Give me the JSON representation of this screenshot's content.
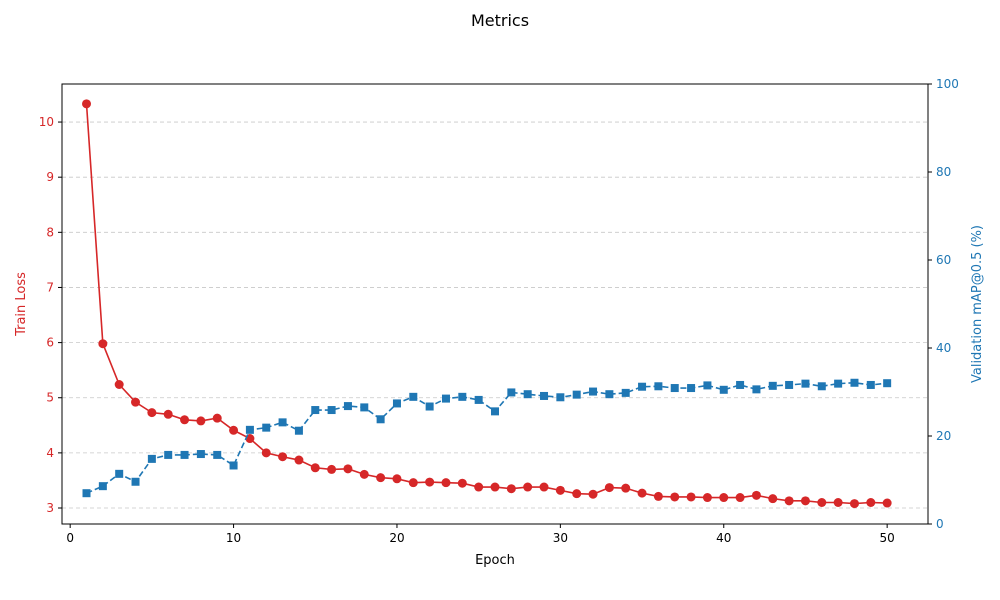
{
  "chart_data": {
    "type": "line",
    "title": "Metrics",
    "xlabel": "Epoch",
    "ylabel_left": "Train Loss",
    "ylabel_right": "Validation mAP@0.5 (%)",
    "xlim": [
      -0.5,
      52.5
    ],
    "ylim_left": [
      2.71,
      10.69
    ],
    "ylim_right": [
      0,
      100
    ],
    "xticks": [
      0,
      10,
      20,
      30,
      40,
      50
    ],
    "yticks_left": [
      3,
      4,
      5,
      6,
      7,
      8,
      9,
      10
    ],
    "yticks_right": [
      0,
      20,
      40,
      60,
      80,
      100
    ],
    "grid": "horizontal dashed",
    "x": [
      1,
      2,
      3,
      4,
      5,
      6,
      7,
      8,
      9,
      10,
      11,
      12,
      13,
      14,
      15,
      16,
      17,
      18,
      19,
      20,
      21,
      22,
      23,
      24,
      25,
      26,
      27,
      28,
      29,
      30,
      31,
      32,
      33,
      34,
      35,
      36,
      37,
      38,
      39,
      40,
      41,
      42,
      43,
      44,
      45,
      46,
      47,
      48,
      49,
      50
    ],
    "series": [
      {
        "axis": "left",
        "color": "#d62728",
        "marker": "circle",
        "linestyle": "solid",
        "values": [
          10.33,
          5.98,
          5.24,
          4.92,
          4.73,
          4.7,
          4.6,
          4.58,
          4.63,
          4.41,
          4.26,
          4.0,
          3.93,
          3.87,
          3.73,
          3.7,
          3.71,
          3.61,
          3.55,
          3.53,
          3.46,
          3.47,
          3.46,
          3.45,
          3.38,
          3.38,
          3.35,
          3.38,
          3.38,
          3.32,
          3.26,
          3.25,
          3.37,
          3.36,
          3.27,
          3.21,
          3.2,
          3.2,
          3.19,
          3.19,
          3.19,
          3.23,
          3.17,
          3.13,
          3.13,
          3.1,
          3.1,
          3.08,
          3.1,
          3.09
        ]
      },
      {
        "axis": "right",
        "color": "#1f77b4",
        "marker": "square",
        "linestyle": "dashed",
        "values": [
          7.0,
          8.6,
          11.4,
          9.6,
          14.8,
          15.7,
          15.7,
          15.9,
          15.7,
          13.3,
          21.4,
          21.9,
          23.1,
          21.2,
          25.9,
          25.9,
          26.8,
          26.5,
          23.8,
          27.4,
          28.9,
          26.7,
          28.5,
          28.9,
          28.2,
          25.6,
          29.9,
          29.5,
          29.1,
          28.8,
          29.4,
          30.1,
          29.5,
          29.8,
          31.2,
          31.3,
          30.9,
          30.9,
          31.5,
          30.5,
          31.6,
          30.6,
          31.4,
          31.6,
          31.9,
          31.3,
          31.9,
          32.1,
          31.6,
          32.0
        ]
      }
    ]
  }
}
